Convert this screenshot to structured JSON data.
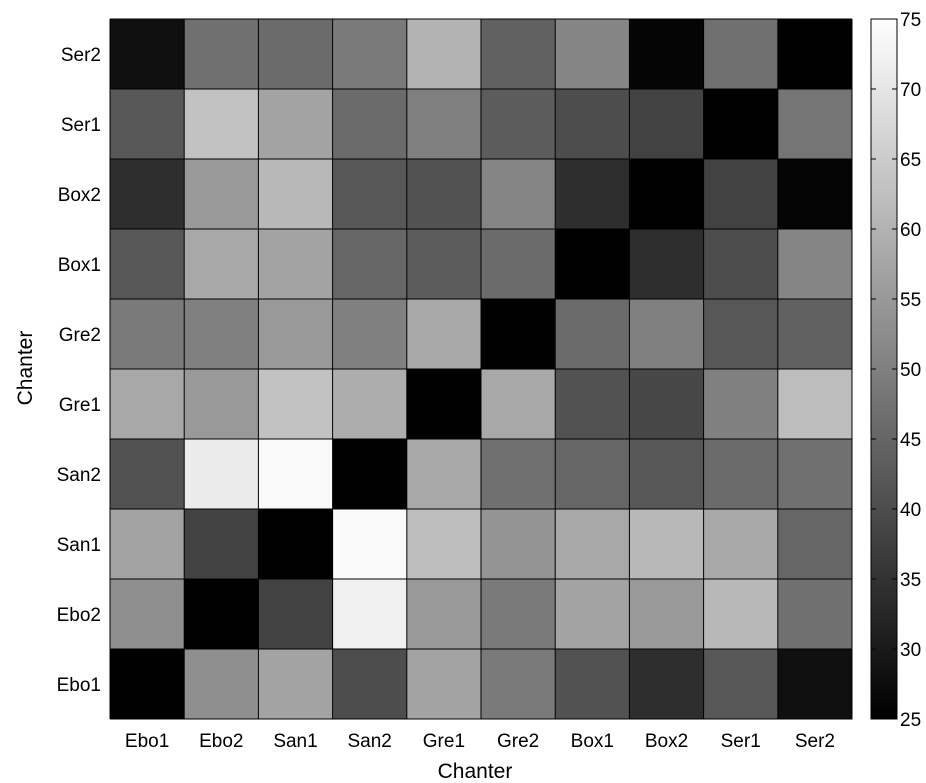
{
  "chart_data": {
    "type": "heatmap",
    "xlabel": "Chanter",
    "ylabel": "Chanter",
    "x_categories": [
      "Ebo1",
      "Ebo2",
      "San1",
      "San2",
      "Gre1",
      "Gre2",
      "Box1",
      "Box2",
      "Ser1",
      "Ser2"
    ],
    "y_categories": [
      "Ebo1",
      "Ebo2",
      "San1",
      "San2",
      "Gre1",
      "Gre2",
      "Box1",
      "Box2",
      "Ser1",
      "Ser2"
    ],
    "values": [
      [
        25,
        53,
        57,
        40,
        57,
        49,
        41,
        34,
        42,
        28
      ],
      [
        53,
        25,
        38,
        72,
        55,
        49,
        57,
        55,
        61,
        47
      ],
      [
        57,
        38,
        25,
        74,
        62,
        54,
        58,
        61,
        58,
        45
      ],
      [
        41,
        71,
        74,
        25,
        58,
        47,
        45,
        42,
        46,
        47
      ],
      [
        58,
        55,
        63,
        59,
        25,
        58,
        41,
        39,
        50,
        62
      ],
      [
        49,
        50,
        55,
        50,
        58,
        25,
        46,
        50,
        42,
        44
      ],
      [
        42,
        58,
        57,
        45,
        43,
        46,
        25,
        34,
        40,
        51
      ],
      [
        34,
        55,
        61,
        42,
        41,
        51,
        34,
        25,
        38,
        26
      ],
      [
        42,
        63,
        57,
        46,
        50,
        43,
        40,
        38,
        25,
        48
      ],
      [
        28,
        47,
        46,
        49,
        60,
        44,
        51,
        26,
        47,
        25
      ]
    ],
    "colorscale": "gray",
    "clim": [
      25,
      75
    ],
    "colorbar_ticks": [
      25,
      30,
      35,
      40,
      45,
      50,
      55,
      60,
      65,
      70,
      75
    ],
    "grid": true,
    "legend": "colorbar-right"
  }
}
